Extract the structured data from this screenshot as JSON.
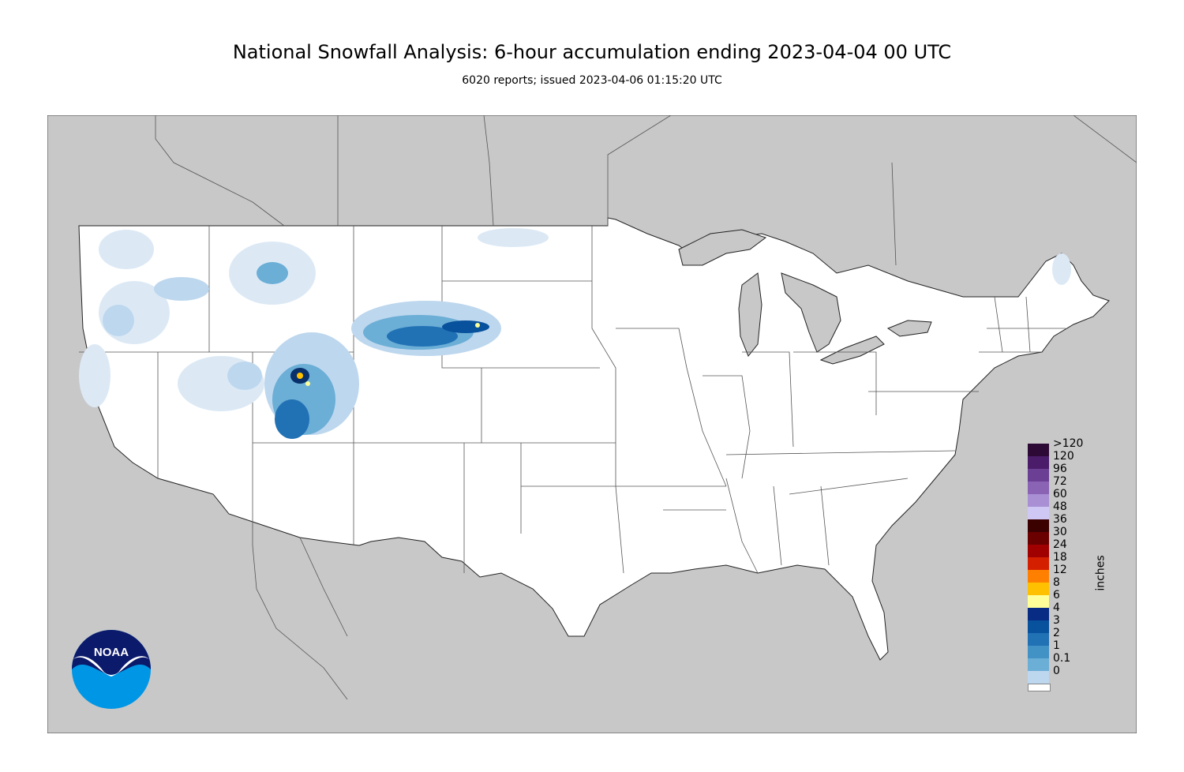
{
  "header": {
    "title": "National Snowfall Analysis: 6-hour accumulation ending 2023-04-04 00 UTC",
    "subtitle": "6020 reports; issued 2023-04-06 01:15:20 UTC"
  },
  "map": {
    "land_color": "#ffffff",
    "outside_color": "#c8c8c8",
    "water_color": "#c8c8c8",
    "border_color": "#222222",
    "snow_bands": [
      {
        "level": "0.1",
        "color": "#dce9f5"
      },
      {
        "level": "1",
        "color": "#bdd7ee"
      },
      {
        "level": "2",
        "color": "#6baed6"
      },
      {
        "level": "3",
        "color": "#2171b5"
      },
      {
        "level": "4",
        "color": "#08519c"
      },
      {
        "level": "6",
        "color": "#08306b"
      },
      {
        "level": "8",
        "color": "#ffff99"
      },
      {
        "level": "12",
        "color": "#ffc000"
      }
    ]
  },
  "legend": {
    "units": "inches",
    "items": [
      {
        "label": ">120",
        "color": "#2d0a36"
      },
      {
        "label": "120",
        "color": "#4b1c6a"
      },
      {
        "label": "96",
        "color": "#6b3f94"
      },
      {
        "label": "72",
        "color": "#8a63b5"
      },
      {
        "label": "60",
        "color": "#a98fd4"
      },
      {
        "label": "48",
        "color": "#cfc8f5"
      },
      {
        "label": "36",
        "color": "#3b0000"
      },
      {
        "label": "30",
        "color": "#6b0000"
      },
      {
        "label": "24",
        "color": "#a00000"
      },
      {
        "label": "18",
        "color": "#d42000"
      },
      {
        "label": "12",
        "color": "#ff8000"
      },
      {
        "label": "8",
        "color": "#ffc000"
      },
      {
        "label": "6",
        "color": "#ffff99"
      },
      {
        "label": "4",
        "color": "#082c84"
      },
      {
        "label": "3",
        "color": "#08519c"
      },
      {
        "label": "2",
        "color": "#2171b5"
      },
      {
        "label": "1",
        "color": "#4292c6"
      },
      {
        "label": "0.1",
        "color": "#6baed6"
      },
      {
        "label": "0",
        "color": "#bdd7ee"
      }
    ],
    "bottom_colors": [
      "#dce9f5",
      "#ffffff"
    ]
  },
  "logo": {
    "text": "NOAA",
    "top_color": "#0b1a6b",
    "bottom_color": "#0096e6"
  }
}
